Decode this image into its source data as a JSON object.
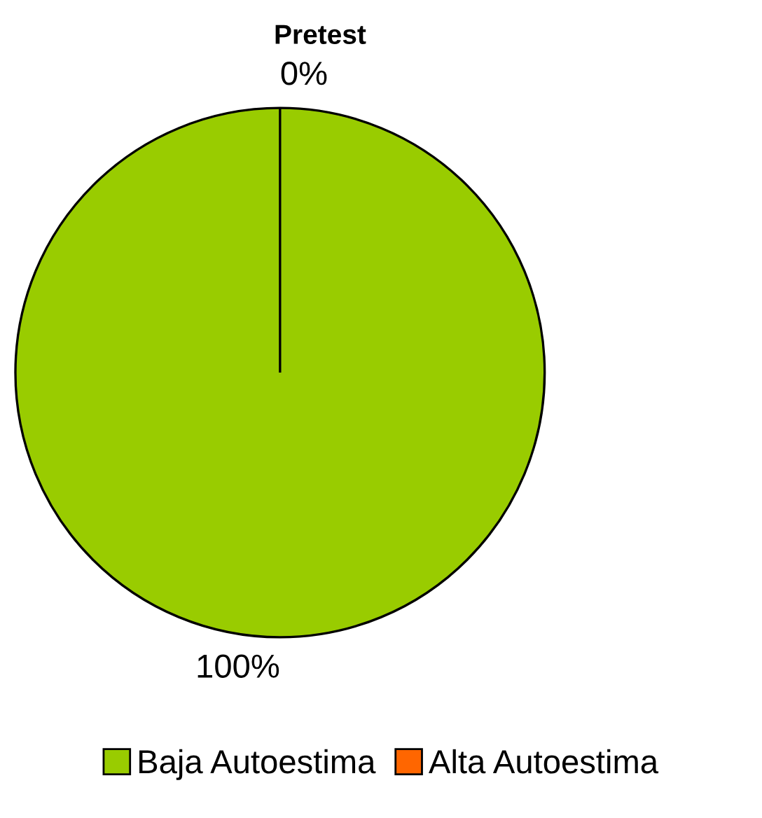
{
  "chart_data": {
    "type": "pie",
    "title": "Pretest",
    "categories": [
      "Baja Autoestima",
      "Alta Autoestima"
    ],
    "values": [
      100,
      0
    ],
    "colors": [
      "#99cc00",
      "#ff6600"
    ],
    "value_labels": [
      "100%",
      "0%"
    ],
    "legend": "bottom"
  }
}
